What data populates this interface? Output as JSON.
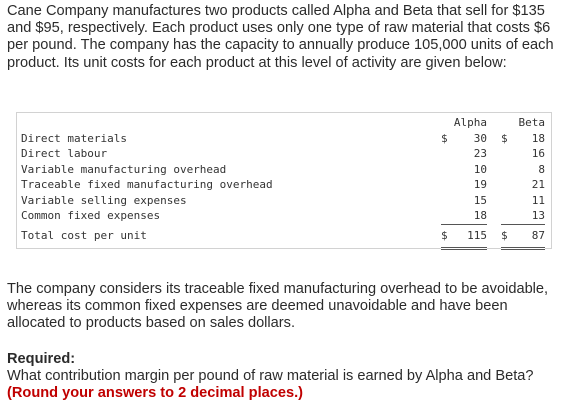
{
  "intro": "Cane Company manufactures two products called Alpha and Beta that sell for $135 and $95, respectively. Each product uses only one type of raw material that costs $6 per pound. The company has the capacity to annually produce 105,000 units of each product. Its unit costs for each product at this level of activity are given below:",
  "table": {
    "headers": {
      "alpha": "Alpha",
      "beta": "Beta"
    },
    "rows": [
      {
        "label": "Direct materials",
        "alpha_sym": "$",
        "alpha": "30",
        "beta_sym": "$",
        "beta": "18"
      },
      {
        "label": "Direct labour",
        "alpha_sym": "",
        "alpha": "23",
        "beta_sym": "",
        "beta": "16"
      },
      {
        "label": "Variable manufacturing overhead",
        "alpha_sym": "",
        "alpha": "10",
        "beta_sym": "",
        "beta": "8"
      },
      {
        "label": "Traceable fixed manufacturing overhead",
        "alpha_sym": "",
        "alpha": "19",
        "beta_sym": "",
        "beta": "21"
      },
      {
        "label": "Variable selling expenses",
        "alpha_sym": "",
        "alpha": "15",
        "beta_sym": "",
        "beta": "11"
      },
      {
        "label": "Common fixed expenses",
        "alpha_sym": "",
        "alpha": "18",
        "beta_sym": "",
        "beta": "13"
      }
    ],
    "total": {
      "label": "Total cost per unit",
      "alpha_sym": "$",
      "alpha": "115",
      "beta_sym": "$",
      "beta": "87"
    }
  },
  "paragraph2": "The company considers its traceable fixed manufacturing overhead to be avoidable, whereas its common fixed expenses are deemed unavoidable and have been allocated to products based on sales dollars.",
  "required": {
    "title": "Required:",
    "question": "What contribution margin per pound of raw material is earned by Alpha and Beta?",
    "instruction": "(Round your answers to 2 decimal places.)"
  }
}
